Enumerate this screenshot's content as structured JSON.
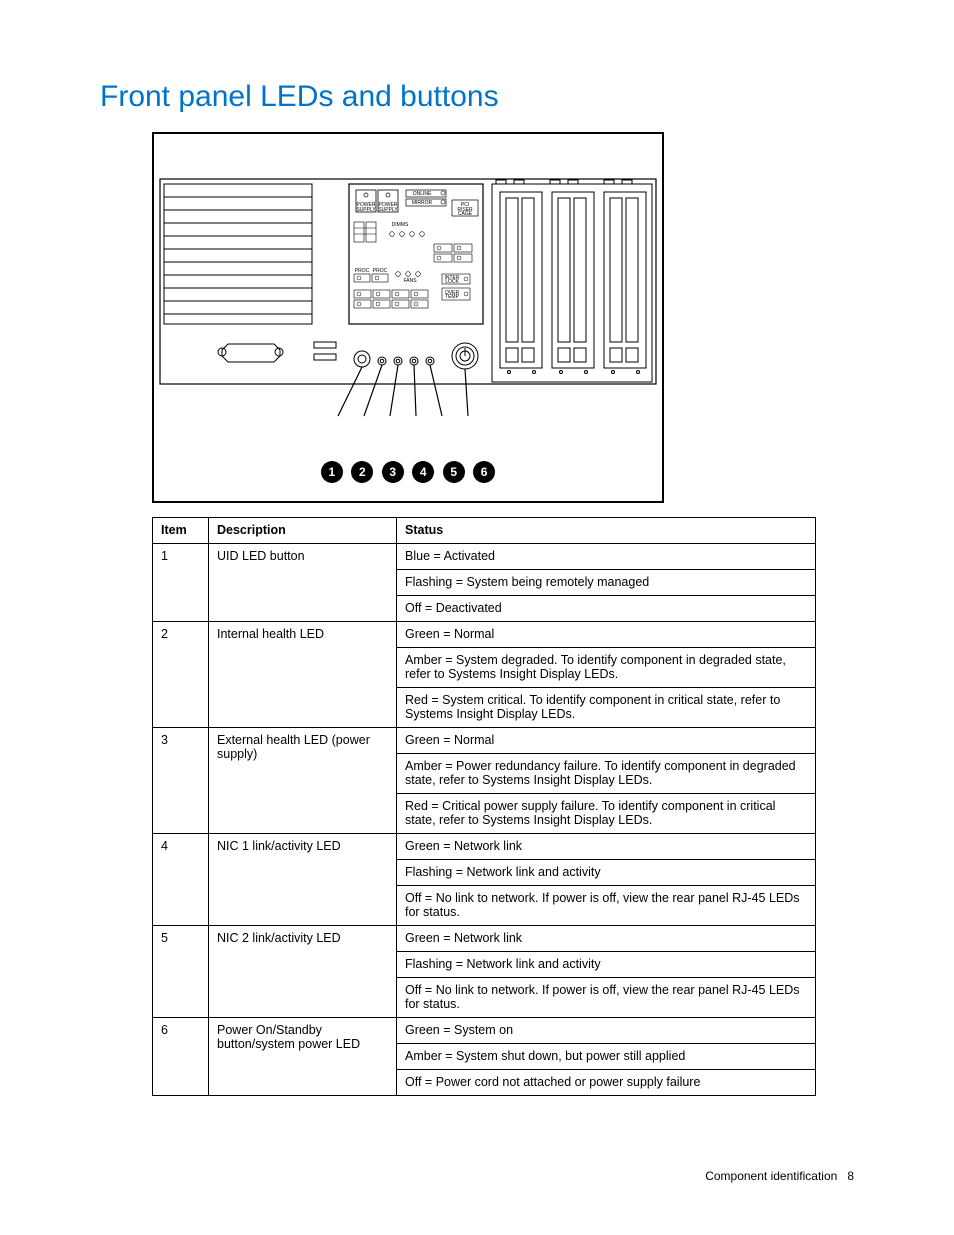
{
  "title": "Front panel LEDs and buttons",
  "diagram": {
    "labels": {
      "power_supply_1": "POWER\nSUPPLY",
      "power_supply_2": "POWER\nSUPPLY",
      "online_spare": "ONLINE\nSPARE",
      "mirror": "MIRROR",
      "pci_riser": "PCI\nRISER\nCAGE",
      "dimms": "DIMMS",
      "proc1": "PROC",
      "proc2": "PROC",
      "fans": "FANS",
      "inter_lock": "INTER\nLOCK",
      "over_temp": "OVER\nTEMP"
    }
  },
  "callouts": [
    "1",
    "2",
    "3",
    "4",
    "5",
    "6"
  ],
  "table": {
    "headers": {
      "item": "Item",
      "description": "Description",
      "status": "Status"
    },
    "rows": [
      {
        "item": "1",
        "description": "UID LED button",
        "status": [
          "Blue = Activated",
          "Flashing = System being remotely managed",
          "Off = Deactivated"
        ]
      },
      {
        "item": "2",
        "description": "Internal health LED",
        "status": [
          "Green = Normal",
          "Amber = System degraded. To identify component in degraded state, refer to Systems Insight Display LEDs.",
          "Red = System critical. To identify component in critical state, refer to Systems Insight Display LEDs."
        ]
      },
      {
        "item": "3",
        "description": "External health LED (power supply)",
        "status": [
          "Green = Normal",
          "Amber = Power redundancy failure. To identify component in degraded state, refer to Systems Insight Display LEDs.",
          "Red = Critical power supply failure. To identify component in critical state, refer to Systems Insight Display LEDs."
        ]
      },
      {
        "item": "4",
        "description": "NIC 1 link/activity LED",
        "status": [
          "Green = Network link",
          "Flashing = Network link and activity",
          "Off = No link to network. If power is off, view the rear panel RJ-45 LEDs for status."
        ]
      },
      {
        "item": "5",
        "description": "NIC 2 link/activity LED",
        "status": [
          "Green = Network link",
          "Flashing = Network link and activity",
          "Off = No link to network. If power is off, view the rear panel RJ-45 LEDs for status."
        ]
      },
      {
        "item": "6",
        "description": "Power On/Standby button/system power LED",
        "status": [
          "Green = System on",
          "Amber = System shut down, but power still applied",
          "Off = Power cord not attached or power supply failure"
        ]
      }
    ]
  },
  "footer": {
    "section": "Component identification",
    "page": "8"
  },
  "colors": {
    "title": "#0073c8",
    "border": "#000000",
    "text": "#000000",
    "background": "#ffffff"
  }
}
